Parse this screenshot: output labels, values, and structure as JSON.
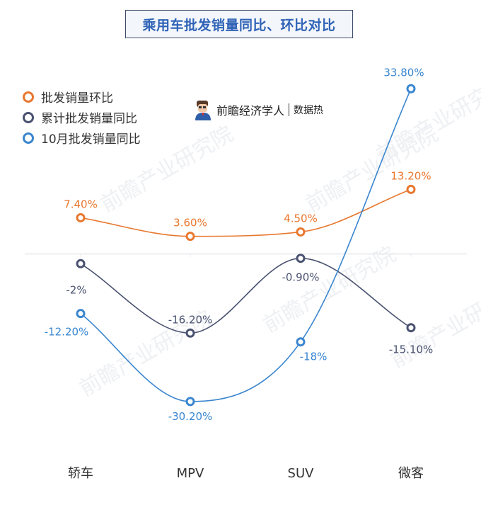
{
  "title": "乘用车批发销量同比、环比对比",
  "brand": {
    "name": "前瞻经济学人",
    "sub": "数据热",
    "watermark": "前瞻产业研究院"
  },
  "colors": {
    "series0": "#e8772e",
    "series1": "#4a5270",
    "series2": "#3a86cf",
    "title": "#2f63b7"
  },
  "legend": [
    {
      "label": "批发销量环比"
    },
    {
      "label": "累计批发销量同比"
    },
    {
      "label": "10月批发销量同比"
    }
  ],
  "chart_data": {
    "type": "line",
    "categories": [
      "轿车",
      "MPV",
      "SUV",
      "微客"
    ],
    "series": [
      {
        "name": "批发销量环比",
        "values": [
          7.4,
          3.6,
          4.5,
          13.2
        ],
        "labels": [
          "7.40%",
          "3.60%",
          "4.50%",
          "13.20%"
        ]
      },
      {
        "name": "累计批发销量同比",
        "values": [
          -2,
          -16.2,
          -0.9,
          -15.1
        ],
        "labels": [
          "-2%",
          "-16.20%",
          "-0.90%",
          "-15.10%"
        ]
      },
      {
        "name": "10月批发销量同比",
        "values": [
          -12.2,
          -30.2,
          -18,
          33.8
        ],
        "labels": [
          "-12.20%",
          "-30.20%",
          "-18%",
          "33.80%"
        ]
      }
    ],
    "ylim": [
      -36,
      40
    ],
    "grid": false,
    "legend_position": "top-left"
  }
}
